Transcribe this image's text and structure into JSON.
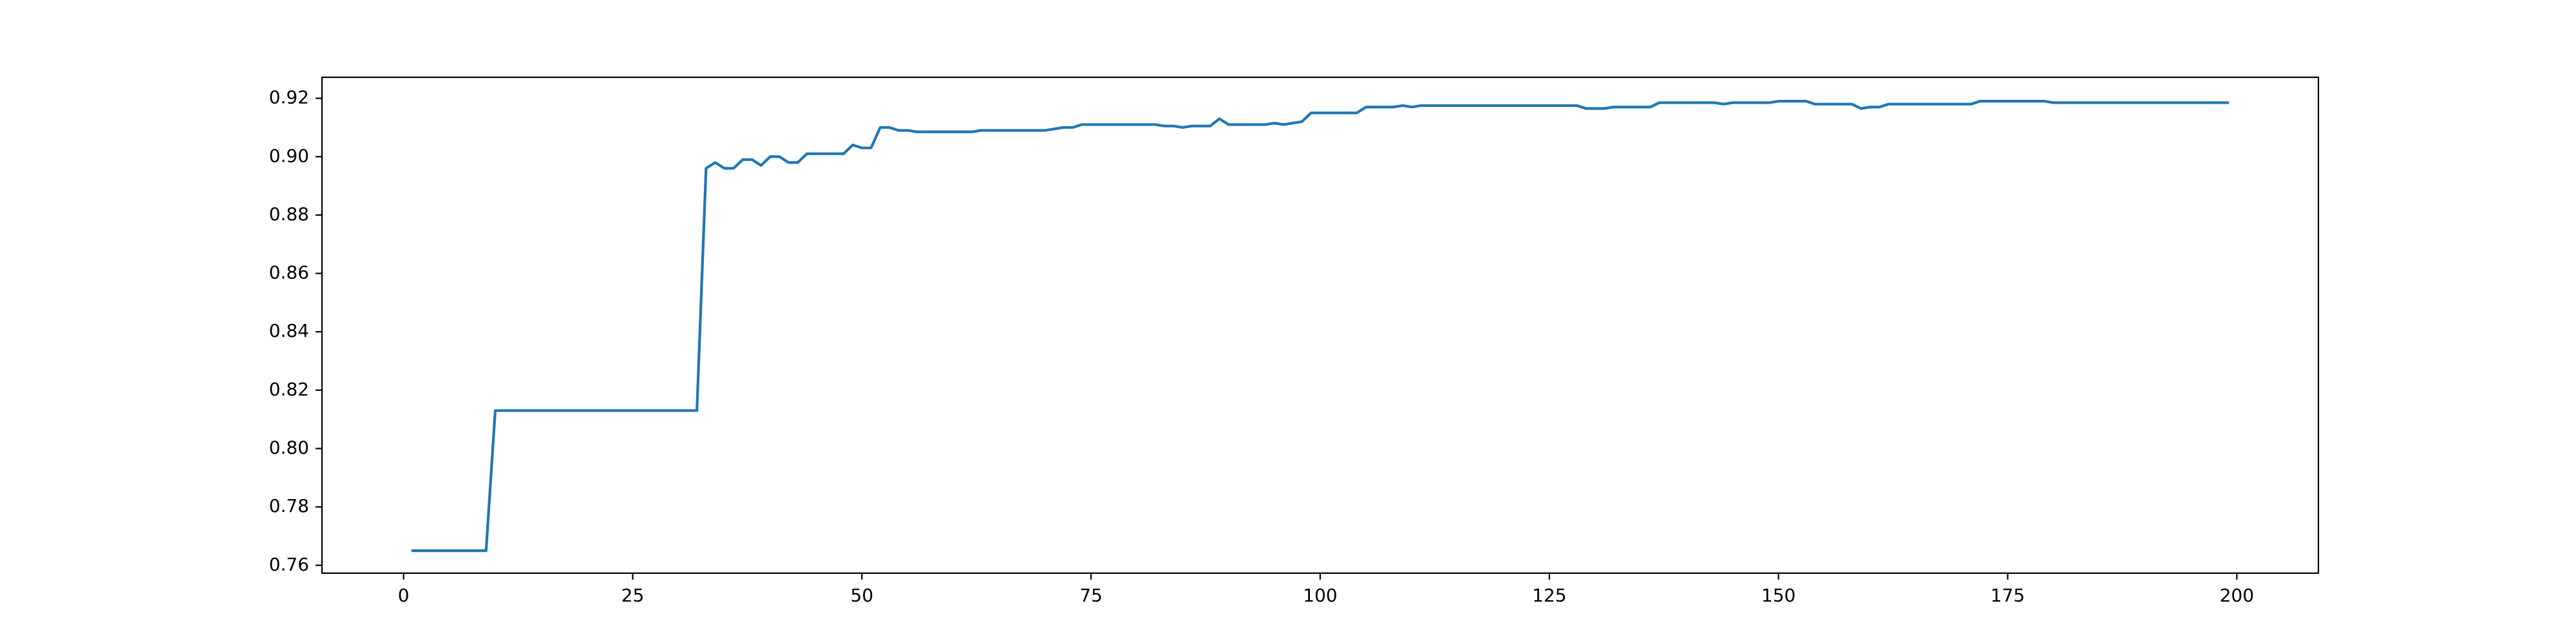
{
  "chart_data": {
    "type": "line",
    "x": [
      1,
      2,
      3,
      4,
      5,
      6,
      7,
      8,
      9,
      10,
      11,
      12,
      13,
      14,
      15,
      16,
      17,
      18,
      19,
      20,
      21,
      22,
      23,
      24,
      25,
      26,
      27,
      28,
      29,
      30,
      31,
      32,
      33,
      34,
      35,
      36,
      37,
      38,
      39,
      40,
      41,
      42,
      43,
      44,
      45,
      46,
      47,
      48,
      49,
      50,
      51,
      52,
      53,
      54,
      55,
      56,
      57,
      58,
      59,
      60,
      61,
      62,
      63,
      64,
      65,
      66,
      67,
      68,
      69,
      70,
      71,
      72,
      73,
      74,
      75,
      76,
      77,
      78,
      79,
      80,
      81,
      82,
      83,
      84,
      85,
      86,
      87,
      88,
      89,
      90,
      91,
      92,
      93,
      94,
      95,
      96,
      97,
      98,
      99,
      100,
      101,
      102,
      103,
      104,
      105,
      106,
      107,
      108,
      109,
      110,
      111,
      112,
      113,
      114,
      115,
      116,
      117,
      118,
      119,
      120,
      121,
      122,
      123,
      124,
      125,
      126,
      127,
      128,
      129,
      130,
      131,
      132,
      133,
      134,
      135,
      136,
      137,
      138,
      139,
      140,
      141,
      142,
      143,
      144,
      145,
      146,
      147,
      148,
      149,
      150,
      151,
      152,
      153,
      154,
      155,
      156,
      157,
      158,
      159,
      160,
      161,
      162,
      163,
      164,
      165,
      166,
      167,
      168,
      169,
      170,
      171,
      172,
      173,
      174,
      175,
      176,
      177,
      178,
      179,
      180,
      181,
      182,
      183,
      184,
      185,
      186,
      187,
      188,
      189,
      190,
      191,
      192,
      193,
      194,
      195,
      196,
      197,
      198,
      199
    ],
    "series": [
      {
        "color": "#1f77b4",
        "values": [
          0.765,
          0.765,
          0.765,
          0.765,
          0.765,
          0.765,
          0.765,
          0.765,
          0.765,
          0.813,
          0.813,
          0.813,
          0.813,
          0.813,
          0.813,
          0.813,
          0.813,
          0.813,
          0.813,
          0.813,
          0.813,
          0.813,
          0.813,
          0.813,
          0.813,
          0.813,
          0.813,
          0.813,
          0.813,
          0.813,
          0.813,
          0.813,
          0.896,
          0.898,
          0.896,
          0.896,
          0.899,
          0.899,
          0.897,
          0.9,
          0.9,
          0.898,
          0.898,
          0.901,
          0.901,
          0.901,
          0.901,
          0.901,
          0.904,
          0.903,
          0.903,
          0.91,
          0.91,
          0.909,
          0.909,
          0.9085,
          0.9085,
          0.9085,
          0.9085,
          0.9085,
          0.9085,
          0.9085,
          0.909,
          0.909,
          0.909,
          0.909,
          0.909,
          0.909,
          0.909,
          0.909,
          0.9095,
          0.91,
          0.91,
          0.911,
          0.911,
          0.911,
          0.911,
          0.911,
          0.911,
          0.911,
          0.911,
          0.911,
          0.9105,
          0.9105,
          0.91,
          0.9105,
          0.9105,
          0.9105,
          0.913,
          0.911,
          0.911,
          0.911,
          0.911,
          0.911,
          0.9115,
          0.911,
          0.9115,
          0.912,
          0.915,
          0.915,
          0.915,
          0.915,
          0.915,
          0.915,
          0.917,
          0.917,
          0.917,
          0.917,
          0.9175,
          0.917,
          0.9175,
          0.9175,
          0.9175,
          0.9175,
          0.9175,
          0.9175,
          0.9175,
          0.9175,
          0.9175,
          0.9175,
          0.9175,
          0.9175,
          0.9175,
          0.9175,
          0.9175,
          0.9175,
          0.9175,
          0.9175,
          0.9165,
          0.9165,
          0.9165,
          0.917,
          0.917,
          0.917,
          0.917,
          0.917,
          0.9185,
          0.9185,
          0.9185,
          0.9185,
          0.9185,
          0.9185,
          0.9185,
          0.918,
          0.9185,
          0.9185,
          0.9185,
          0.9185,
          0.9185,
          0.919,
          0.919,
          0.919,
          0.919,
          0.918,
          0.918,
          0.918,
          0.918,
          0.918,
          0.9165,
          0.917,
          0.917,
          0.918,
          0.918,
          0.918,
          0.918,
          0.918,
          0.918,
          0.918,
          0.918,
          0.918,
          0.918,
          0.919,
          0.919,
          0.919,
          0.919,
          0.919,
          0.919,
          0.919,
          0.919,
          0.9185,
          0.9185,
          0.9185,
          0.9185,
          0.9185,
          0.9185,
          0.9185,
          0.9185,
          0.9185,
          0.9185,
          0.9185,
          0.9185,
          0.9185,
          0.9185,
          0.9185,
          0.9185,
          0.9185,
          0.9185,
          0.9185,
          0.9185
        ]
      }
    ],
    "xlim": [
      -8.9,
      208.9
    ],
    "xticks": [
      0,
      25,
      50,
      75,
      100,
      125,
      150,
      175,
      200
    ],
    "ylim": [
      0.7573,
      0.9272
    ],
    "yticks": [
      0.76,
      0.78,
      {
        "value": 0.8,
        "label": "0.80"
      },
      0.82,
      0.84,
      0.86,
      0.88,
      {
        "value": 0.9,
        "label": "0.90"
      },
      0.92
    ]
  }
}
